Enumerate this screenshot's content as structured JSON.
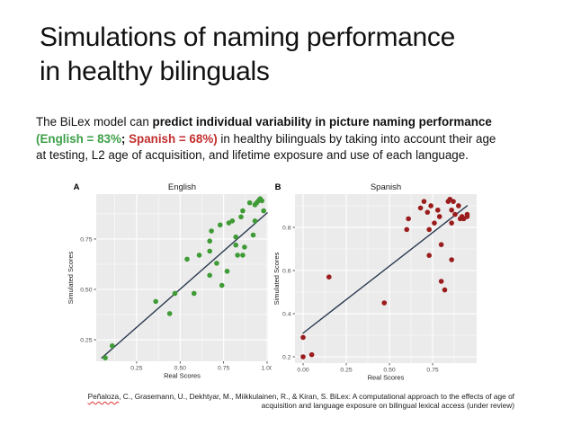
{
  "slide": {
    "title": {
      "line1": "Simulations of naming performance",
      "line2": "in healthy bilinguals"
    },
    "paragraph": {
      "intro": "The BiLex model can ",
      "bold_claim": "predict individual variability in picture naming performance",
      "english_stat": "(English = 83%",
      "separator": "; ",
      "spanish_stat": "Spanish = 68%)",
      "line2_rest": " in healthy bilinguals by taking into account their age",
      "line3": "at testing, L2 age of acquisition, and lifetime exposure and use of each language."
    },
    "citation": {
      "author_word": "Peñaloza",
      "line1_rest": ", C., Grasemann, U., Dekhtyar, M., Miikkulainen, R., & Kiran, S. BiLex: A computational approach to the effects of age of",
      "line2": "acquisition and language exposure on bilingual lexical access (under review)"
    }
  },
  "colors": {
    "title_text": "#111111",
    "body_text": "#111111",
    "english_green": "#3da048",
    "spanish_red": "#c22f2f",
    "point_green": "#3e9b35",
    "point_red": "#9b1c1c",
    "regression_line": "#2b3a50",
    "plot_background": "#ebebeb",
    "gridline": "#ffffff",
    "tick_text": "#4d4d4d",
    "axis_text": "#1a1a1a",
    "tick_mark": "#333333",
    "spellcheck_underline": "#e03030"
  },
  "chart_data": [
    {
      "type": "scatter",
      "panel_label": "A",
      "title": "English",
      "xlabel": "Real Scores",
      "ylabel": "Simulated Scores",
      "xlim": [
        0.018,
        1.005
      ],
      "ylim": [
        0.143,
        0.973
      ],
      "x_ticks": [
        0.25,
        0.5,
        0.75,
        1.0
      ],
      "x_tick_labels": [
        "0.25",
        "0.50",
        "0.75",
        "1.00"
      ],
      "y_ticks": [
        0.25,
        0.5,
        0.75
      ],
      "y_tick_labels": [
        "0.25",
        "0.50",
        "0.75"
      ],
      "grid": true,
      "legend": "none",
      "point_color_key": "point_green",
      "regression_line_points": [
        [
          0.05,
          0.16
        ],
        [
          1.0,
          0.88
        ]
      ],
      "points": [
        [
          0.07,
          0.16
        ],
        [
          0.11,
          0.22
        ],
        [
          0.36,
          0.44
        ],
        [
          0.44,
          0.38
        ],
        [
          0.47,
          0.48
        ],
        [
          0.54,
          0.65
        ],
        [
          0.58,
          0.48
        ],
        [
          0.61,
          0.67
        ],
        [
          0.67,
          0.74
        ],
        [
          0.67,
          0.69
        ],
        [
          0.67,
          0.57
        ],
        [
          0.68,
          0.79
        ],
        [
          0.71,
          0.63
        ],
        [
          0.73,
          0.82
        ],
        [
          0.74,
          0.52
        ],
        [
          0.77,
          0.59
        ],
        [
          0.78,
          0.83
        ],
        [
          0.8,
          0.84
        ],
        [
          0.82,
          0.76
        ],
        [
          0.82,
          0.72
        ],
        [
          0.83,
          0.67
        ],
        [
          0.85,
          0.86
        ],
        [
          0.86,
          0.89
        ],
        [
          0.86,
          0.67
        ],
        [
          0.87,
          0.71
        ],
        [
          0.9,
          0.93
        ],
        [
          0.92,
          0.77
        ],
        [
          0.93,
          0.84
        ],
        [
          0.93,
          0.92
        ],
        [
          0.94,
          0.93
        ],
        [
          0.95,
          0.94
        ],
        [
          0.96,
          0.95
        ],
        [
          0.97,
          0.94
        ],
        [
          0.98,
          0.89
        ]
      ]
    },
    {
      "type": "scatter",
      "panel_label": "B",
      "title": "Spanish",
      "xlabel": "Real Scores",
      "ylabel": "Simulated Scores",
      "xlim": [
        -0.047,
        1.005
      ],
      "ylim": [
        0.171,
        0.954
      ],
      "x_ticks": [
        0.0,
        0.25,
        0.5,
        0.75
      ],
      "x_tick_labels": [
        "0.00",
        "0.25",
        "0.50",
        "0.75"
      ],
      "y_ticks": [
        0.2,
        0.4,
        0.6,
        0.8
      ],
      "y_tick_labels": [
        "0.2",
        "0.4",
        "0.6",
        "0.8"
      ],
      "grid": true,
      "legend": "none",
      "point_color_key": "point_red",
      "regression_line_points": [
        [
          0.0,
          0.31
        ],
        [
          0.95,
          0.9
        ]
      ],
      "points": [
        [
          0.0,
          0.29
        ],
        [
          0.0,
          0.2
        ],
        [
          0.05,
          0.21
        ],
        [
          0.15,
          0.57
        ],
        [
          0.47,
          0.45
        ],
        [
          0.6,
          0.79
        ],
        [
          0.61,
          0.84
        ],
        [
          0.68,
          0.89
        ],
        [
          0.7,
          0.92
        ],
        [
          0.72,
          0.87
        ],
        [
          0.73,
          0.79
        ],
        [
          0.73,
          0.67
        ],
        [
          0.74,
          0.9
        ],
        [
          0.76,
          0.82
        ],
        [
          0.78,
          0.88
        ],
        [
          0.79,
          0.85
        ],
        [
          0.8,
          0.72
        ],
        [
          0.8,
          0.55
        ],
        [
          0.82,
          0.51
        ],
        [
          0.84,
          0.92
        ],
        [
          0.85,
          0.93
        ],
        [
          0.86,
          0.88
        ],
        [
          0.86,
          0.82
        ],
        [
          0.86,
          0.65
        ],
        [
          0.87,
          0.92
        ],
        [
          0.88,
          0.86
        ],
        [
          0.9,
          0.9
        ],
        [
          0.91,
          0.84
        ],
        [
          0.92,
          0.85
        ],
        [
          0.93,
          0.84
        ],
        [
          0.95,
          0.86
        ],
        [
          0.95,
          0.85
        ]
      ]
    }
  ]
}
